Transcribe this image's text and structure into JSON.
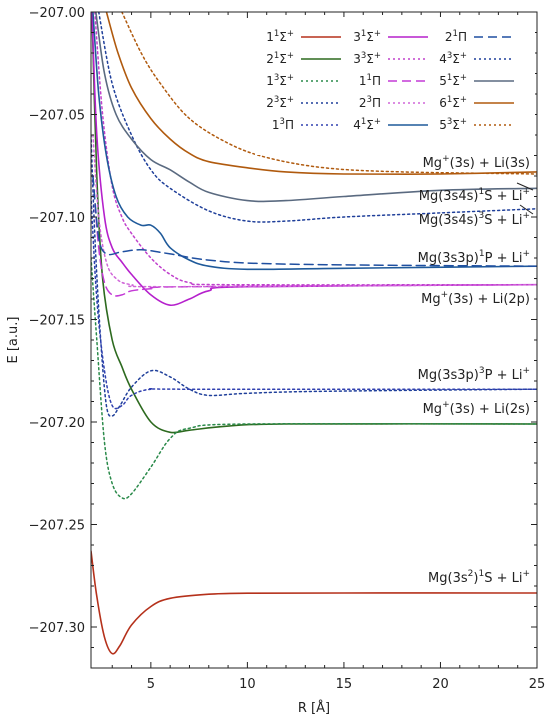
{
  "chart_data": {
    "type": "line",
    "xlabel": "R [Å]",
    "ylabel": "E [a.u.]",
    "xlim": [
      1.9,
      25
    ],
    "ylim": [
      -207.32,
      -207.0
    ],
    "xticks": [
      {
        "v": 5,
        "label": "5"
      },
      {
        "v": 10,
        "label": "10"
      },
      {
        "v": 15,
        "label": "15"
      },
      {
        "v": 20,
        "label": "20"
      },
      {
        "v": 25,
        "label": "25"
      }
    ],
    "yticks": [
      {
        "v": -207.0,
        "label": "−207.00"
      },
      {
        "v": -207.05,
        "label": "−207.05"
      },
      {
        "v": -207.1,
        "label": "−207.10"
      },
      {
        "v": -207.15,
        "label": "−207.15"
      },
      {
        "v": -207.2,
        "label": "−207.20"
      },
      {
        "v": -207.25,
        "label": "−207.25"
      },
      {
        "v": -207.3,
        "label": "−207.30"
      }
    ],
    "legend_position": "top-right",
    "series": [
      {
        "id": "s1",
        "name_main": "1",
        "name_sup1": "1",
        "name_mid": "Σ",
        "name_sup2": "+",
        "color": "#b5311b",
        "style": "solid",
        "points": [
          [
            1.9,
            -207.263
          ],
          [
            2.2,
            -207.285
          ],
          [
            2.6,
            -207.305
          ],
          [
            3.0,
            -207.313
          ],
          [
            3.4,
            -207.309
          ],
          [
            4.0,
            -207.299
          ],
          [
            5.0,
            -207.29
          ],
          [
            6.0,
            -207.286
          ],
          [
            8.0,
            -207.284
          ],
          [
            10.0,
            -207.2835
          ],
          [
            15.0,
            -207.2834
          ],
          [
            25.0,
            -207.2834
          ]
        ]
      },
      {
        "id": "s2",
        "name_main": "2",
        "name_sup1": "1",
        "name_mid": "Σ",
        "name_sup2": "+",
        "color": "#2d6a1f",
        "style": "solid",
        "points": [
          [
            1.95,
            -207.0
          ],
          [
            2.2,
            -207.08
          ],
          [
            2.5,
            -207.13
          ],
          [
            3.0,
            -207.16
          ],
          [
            3.5,
            -207.173
          ],
          [
            4.0,
            -207.184
          ],
          [
            5.0,
            -207.2
          ],
          [
            6.0,
            -207.205
          ],
          [
            7.0,
            -207.204
          ],
          [
            9.0,
            -207.202
          ],
          [
            12.0,
            -207.201
          ],
          [
            25.0,
            -207.201
          ]
        ]
      },
      {
        "id": "s3",
        "name_main": "1",
        "name_sup1": "3",
        "name_mid": "Σ",
        "name_sup2": "+",
        "color": "#2a8a4a",
        "style": "dotted",
        "points": [
          [
            1.9,
            -207.12
          ],
          [
            2.2,
            -207.16
          ],
          [
            2.6,
            -207.21
          ],
          [
            3.0,
            -207.23
          ],
          [
            3.5,
            -207.237
          ],
          [
            4.0,
            -207.235
          ],
          [
            5.0,
            -207.222
          ],
          [
            6.0,
            -207.208
          ],
          [
            7.0,
            -207.203
          ],
          [
            10.0,
            -207.201
          ],
          [
            25.0,
            -207.201
          ]
        ]
      },
      {
        "id": "s4",
        "name_main": "2",
        "name_sup1": "3",
        "name_mid": "Σ",
        "name_sup2": "+",
        "color": "#1f3f9a",
        "style": "dotted",
        "points": [
          [
            1.9,
            -207.06
          ],
          [
            2.1,
            -207.11
          ],
          [
            2.4,
            -207.16
          ],
          [
            2.7,
            -207.192
          ],
          [
            3.0,
            -207.197
          ],
          [
            3.4,
            -207.192
          ],
          [
            4.0,
            -207.183
          ],
          [
            5.0,
            -207.175
          ],
          [
            6.0,
            -207.178
          ],
          [
            7.0,
            -207.184
          ],
          [
            8.0,
            -207.187
          ],
          [
            10.0,
            -207.186
          ],
          [
            14.0,
            -207.185
          ],
          [
            25.0,
            -207.184
          ]
        ]
      },
      {
        "id": "s5",
        "name_main": "1",
        "name_sup1": "3",
        "name_mid": "Π",
        "name_sup2": "",
        "color": "#3040b0",
        "style": "dotted",
        "points": [
          [
            1.9,
            -207.09
          ],
          [
            2.2,
            -207.14
          ],
          [
            2.6,
            -207.175
          ],
          [
            3.0,
            -207.192
          ],
          [
            3.5,
            -207.192
          ],
          [
            4.0,
            -207.187
          ],
          [
            5.0,
            -207.184
          ],
          [
            7.0,
            -207.184
          ],
          [
            25.0,
            -207.184
          ]
        ]
      },
      {
        "id": "s6",
        "name_main": "3",
        "name_sup1": "1",
        "name_mid": "Σ",
        "name_sup2": "+",
        "color": "#b520cc",
        "style": "solid",
        "points": [
          [
            1.95,
            -207.0
          ],
          [
            2.2,
            -207.06
          ],
          [
            2.6,
            -207.1
          ],
          [
            3.0,
            -207.115
          ],
          [
            3.5,
            -207.122
          ],
          [
            4.0,
            -207.128
          ],
          [
            5.0,
            -207.138
          ],
          [
            6.0,
            -207.143
          ],
          [
            7.0,
            -207.14
          ],
          [
            8.0,
            -207.136
          ],
          [
            10.0,
            -207.134
          ],
          [
            25.0,
            -207.133
          ]
        ]
      },
      {
        "id": "s7",
        "name_main": "3",
        "name_sup1": "3",
        "name_mid": "Σ",
        "name_sup2": "+",
        "color": "#c040cc",
        "style": "dotted",
        "points": [
          [
            2.1,
            -207.0
          ],
          [
            2.5,
            -207.05
          ],
          [
            3.0,
            -207.085
          ],
          [
            3.5,
            -207.1
          ],
          [
            4.0,
            -207.108
          ],
          [
            5.0,
            -207.12
          ],
          [
            6.0,
            -207.128
          ],
          [
            7.0,
            -207.132
          ],
          [
            9.0,
            -207.133
          ],
          [
            25.0,
            -207.133
          ]
        ]
      },
      {
        "id": "s8",
        "name_main": "1",
        "name_sup1": "1",
        "name_mid": "Π",
        "name_sup2": "",
        "color": "#c43ad6",
        "style": "dashed",
        "points": [
          [
            2.0,
            -207.08
          ],
          [
            2.3,
            -207.115
          ],
          [
            2.6,
            -207.132
          ],
          [
            3.0,
            -207.138
          ],
          [
            3.5,
            -207.138
          ],
          [
            4.0,
            -207.136
          ],
          [
            5.0,
            -207.135
          ],
          [
            7.0,
            -207.134
          ],
          [
            25.0,
            -207.133
          ]
        ]
      },
      {
        "id": "s9",
        "name_main": "2",
        "name_sup1": "3",
        "name_mid": "Π",
        "name_sup2": "",
        "color": "#d066d8",
        "style": "dotted",
        "points": [
          [
            2.0,
            -207.06
          ],
          [
            2.3,
            -207.1
          ],
          [
            2.7,
            -207.122
          ],
          [
            3.2,
            -207.13
          ],
          [
            4.0,
            -207.133
          ],
          [
            6.0,
            -207.134
          ],
          [
            25.0,
            -207.133
          ]
        ]
      },
      {
        "id": "s10",
        "name_main": "4",
        "name_sup1": "1",
        "name_mid": "Σ",
        "name_sup2": "+",
        "color": "#1f5a9a",
        "style": "solid",
        "points": [
          [
            2.0,
            -207.0
          ],
          [
            2.3,
            -207.04
          ],
          [
            2.7,
            -207.07
          ],
          [
            3.2,
            -207.09
          ],
          [
            3.8,
            -207.1
          ],
          [
            4.5,
            -207.104
          ],
          [
            5.0,
            -207.104
          ],
          [
            5.5,
            -207.108
          ],
          [
            6.0,
            -207.115
          ],
          [
            7.0,
            -207.121
          ],
          [
            8.0,
            -207.124
          ],
          [
            10.0,
            -207.1255
          ],
          [
            15.0,
            -207.125
          ],
          [
            25.0,
            -207.124
          ]
        ]
      },
      {
        "id": "s11",
        "name_main": "2",
        "name_sup1": "1",
        "name_mid": "Π",
        "name_sup2": "",
        "color": "#1f4fa0",
        "style": "dashed",
        "points": [
          [
            2.0,
            -207.08
          ],
          [
            2.3,
            -207.11
          ],
          [
            2.7,
            -207.118
          ],
          [
            3.5,
            -207.117
          ],
          [
            4.5,
            -207.116
          ],
          [
            6.0,
            -207.118
          ],
          [
            8.0,
            -207.121
          ],
          [
            12.0,
            -207.123
          ],
          [
            25.0,
            -207.124
          ]
        ]
      },
      {
        "id": "s12",
        "name_main": "4",
        "name_sup1": "3",
        "name_mid": "Σ",
        "name_sup2": "+",
        "color": "#1f3f9a",
        "style": "dotted",
        "points": [
          [
            2.3,
            -207.0
          ],
          [
            3.0,
            -207.035
          ],
          [
            4.0,
            -207.06
          ],
          [
            5.0,
            -207.077
          ],
          [
            6.0,
            -207.086
          ],
          [
            8.0,
            -207.097
          ],
          [
            10.0,
            -207.102
          ],
          [
            12.0,
            -207.102
          ],
          [
            15.0,
            -207.1
          ],
          [
            20.0,
            -207.098
          ],
          [
            25.0,
            -207.096
          ]
        ]
      },
      {
        "id": "s13",
        "name_main": "5",
        "name_sup1": "1",
        "name_mid": "Σ",
        "name_sup2": "+",
        "color": "#5a6a80",
        "style": "solid",
        "points": [
          [
            2.15,
            -207.0
          ],
          [
            2.6,
            -207.03
          ],
          [
            3.2,
            -207.05
          ],
          [
            4.0,
            -207.062
          ],
          [
            5.0,
            -207.072
          ],
          [
            6.0,
            -207.077
          ],
          [
            7.0,
            -207.083
          ],
          [
            8.0,
            -207.088
          ],
          [
            10.0,
            -207.092
          ],
          [
            12.0,
            -207.092
          ],
          [
            15.0,
            -207.09
          ],
          [
            20.0,
            -207.087
          ],
          [
            25.0,
            -207.086
          ]
        ]
      },
      {
        "id": "s14",
        "name_main": "6",
        "name_sup1": "1",
        "name_mid": "Σ",
        "name_sup2": "+",
        "color": "#b05a0e",
        "style": "solid",
        "points": [
          [
            2.7,
            -207.0
          ],
          [
            3.3,
            -207.02
          ],
          [
            4.0,
            -207.037
          ],
          [
            5.0,
            -207.052
          ],
          [
            6.0,
            -207.062
          ],
          [
            7.0,
            -207.069
          ],
          [
            8.0,
            -207.073
          ],
          [
            10.0,
            -207.076
          ],
          [
            12.0,
            -207.078
          ],
          [
            15.0,
            -207.079
          ],
          [
            20.0,
            -207.079
          ],
          [
            25.0,
            -207.078
          ]
        ]
      },
      {
        "id": "s15",
        "name_main": "5",
        "name_sup1": "3",
        "name_mid": "Σ",
        "name_sup2": "+",
        "color": "#b05a0e",
        "style": "dotted",
        "points": [
          [
            3.5,
            -207.0
          ],
          [
            4.5,
            -207.02
          ],
          [
            5.5,
            -207.035
          ],
          [
            7.0,
            -207.052
          ],
          [
            9.0,
            -207.064
          ],
          [
            11.0,
            -207.071
          ],
          [
            14.0,
            -207.076
          ],
          [
            18.0,
            -207.078
          ],
          [
            25.0,
            -207.079
          ]
        ]
      }
    ],
    "annotations": [
      {
        "id": "a1",
        "base": "Mg",
        "sup": "+",
        "rest": "(3s) + Li(3s)",
        "sup2": "",
        "tail": ""
      },
      {
        "id": "a2",
        "base": "Mg(3s4s)",
        "sup": "1",
        "rest": "S + Li",
        "sup2": "+",
        "tail": ""
      },
      {
        "id": "a3",
        "base": "Mg(3s4s)",
        "sup": "3",
        "rest": "S + Li",
        "sup2": "+",
        "tail": ""
      },
      {
        "id": "a4",
        "base": "Mg(3s3p)",
        "sup": "1",
        "rest": "P + Li",
        "sup2": "+",
        "tail": ""
      },
      {
        "id": "a5",
        "base": "Mg",
        "sup": "+",
        "rest": "(3s) + Li(2p)",
        "sup2": "",
        "tail": ""
      },
      {
        "id": "a6",
        "base": "Mg(3s3p)",
        "sup": "3",
        "rest": "P + Li",
        "sup2": "+",
        "tail": ""
      },
      {
        "id": "a7",
        "base": "Mg",
        "sup": "+",
        "rest": "(3s) + Li(2s)",
        "sup2": "",
        "tail": ""
      },
      {
        "id": "a8",
        "base": "Mg(3s",
        "sup": "2",
        "rest": ")",
        "sup2": "1",
        "tail": "S + Li",
        "sup3": "+"
      }
    ]
  }
}
